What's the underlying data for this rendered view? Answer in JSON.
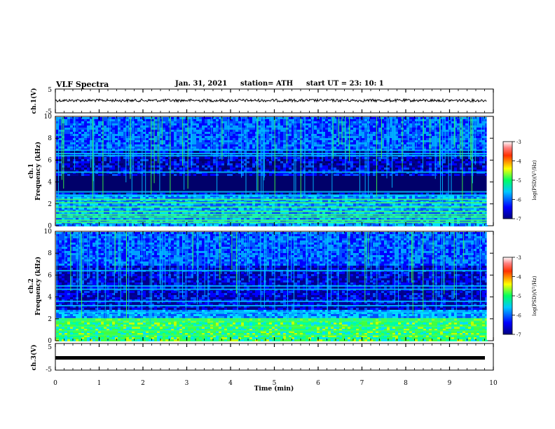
{
  "header": {
    "title": "VLF Spectra",
    "date": "Jan. 31, 2021",
    "station": "station= ATH",
    "start": "start  UT  =   23: 10: 1"
  },
  "chart_data": [
    {
      "type": "line",
      "panel": "ch1-waveform",
      "ylabel": "ch.1(V)",
      "ylim": [
        -5,
        5
      ],
      "yticks": [
        "5",
        "-5"
      ],
      "xlim": [
        0,
        10
      ],
      "description_level_V": 0.5
    },
    {
      "type": "heatmap",
      "panel": "ch1-spectrogram",
      "ylabel": "ch.1\nFrequency (kHz)",
      "ylabel_lines": [
        "ch.1",
        "Frequency (kHz)"
      ],
      "ylim": [
        0,
        10
      ],
      "yticks": [
        "0",
        "2",
        "4",
        "6",
        "8",
        "10"
      ],
      "colorbar": {
        "label": "log(PSD)(V²/Hz)",
        "range": [
          -7,
          -3
        ],
        "ticks": [
          "-3",
          "-4",
          "-5",
          "-6",
          "-7"
        ]
      },
      "bands_khz": [
        0.3,
        0.5,
        0.8,
        1.0,
        1.3,
        1.7,
        2.1,
        2.4,
        2.8,
        3.1,
        4.9,
        6.4,
        6.6,
        6.9
      ]
    },
    {
      "type": "heatmap",
      "panel": "ch2-spectrogram",
      "ylabel": "ch.2\nFrequency (kHz)",
      "ylabel_lines": [
        "ch.2",
        "Frequency (kHz)"
      ],
      "ylim": [
        0,
        10
      ],
      "yticks": [
        "0",
        "2",
        "4",
        "6",
        "8",
        "10"
      ],
      "colorbar": {
        "label": "log(PSD)(V²/Hz)",
        "range": [
          -7,
          -3
        ],
        "ticks": [
          "-3",
          "-4",
          "-5",
          "-6",
          "-7"
        ]
      },
      "bands_khz": [
        0.5,
        0.9,
        1.3,
        1.8,
        2.0,
        2.6,
        3.2,
        3.6,
        4.7,
        5.0,
        6.4
      ]
    },
    {
      "type": "line",
      "panel": "ch3-waveform",
      "ylabel": "ch.3(V)",
      "ylim": [
        -5,
        5
      ],
      "yticks": [
        "5",
        "-5"
      ],
      "xlim": [
        0,
        10
      ],
      "level_V": 0
    }
  ],
  "xaxis": {
    "label": "Time (min)",
    "ticks": [
      "0",
      "1",
      "2",
      "3",
      "4",
      "5",
      "6",
      "7",
      "8",
      "9",
      "10"
    ],
    "range": [
      0,
      10
    ],
    "data_end_min": 9.85
  },
  "colors": {
    "background": "#000000",
    "frame": "#000000"
  }
}
